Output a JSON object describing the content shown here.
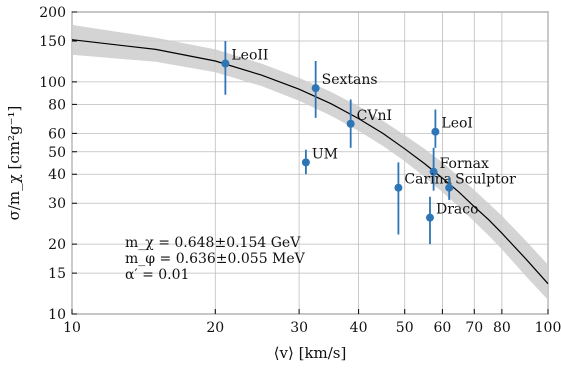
{
  "chart_data": {
    "type": "scatter",
    "x_scale": "log",
    "y_scale": "log",
    "xlim": [
      10,
      100
    ],
    "ylim": [
      10,
      200
    ],
    "x_ticks": [
      10,
      20,
      30,
      40,
      50,
      60,
      70,
      80,
      100
    ],
    "x_tick_labels": [
      "10",
      "20",
      "30",
      "40",
      "50",
      "60",
      "70",
      "80",
      "100"
    ],
    "y_ticks": [
      10,
      15,
      20,
      30,
      40,
      50,
      60,
      80,
      100,
      150,
      200
    ],
    "y_tick_labels": [
      "10",
      "15",
      "20",
      "30",
      "40",
      "50",
      "60",
      "80",
      "100",
      "150",
      "200"
    ],
    "xlabel": "⟨v⟩ [km/s]",
    "ylabel": "σ/m_χ [cm²g⁻¹]",
    "grid": true,
    "point_color": "#2e75b6",
    "band_color": "#cccccc",
    "curve_color": "#000000",
    "points": [
      {
        "label": "LeoII",
        "x": 21.0,
        "y": 120,
        "y_low": 88,
        "y_high": 150
      },
      {
        "label": "Sextans",
        "x": 32.5,
        "y": 94,
        "y_low": 70,
        "y_high": 123
      },
      {
        "label": "CVnI",
        "x": 38.5,
        "y": 66,
        "y_low": 52,
        "y_high": 84
      },
      {
        "label": "UM",
        "x": 31.0,
        "y": 45,
        "y_low": 40,
        "y_high": 51
      },
      {
        "label": "LeoI",
        "x": 58.0,
        "y": 61,
        "y_low": 52,
        "y_high": 76
      },
      {
        "label": "Fornax",
        "x": 57.5,
        "y": 41,
        "y_low": 34,
        "y_high": 52
      },
      {
        "label": "Carina",
        "x": 48.5,
        "y": 35,
        "y_low": 22,
        "y_high": 45
      },
      {
        "label": "Sculptor",
        "x": 62.0,
        "y": 35,
        "y_low": 31,
        "y_high": 39
      },
      {
        "label": "Draco",
        "x": 56.5,
        "y": 26,
        "y_low": 20,
        "y_high": 32
      }
    ],
    "fit_curve": {
      "x": [
        10,
        15,
        20,
        25,
        30,
        35,
        40,
        45,
        50,
        55,
        60,
        65,
        70,
        75,
        80,
        90,
        100
      ],
      "y": [
        152,
        138,
        123,
        107,
        93,
        80.5,
        69.5,
        60,
        51.5,
        44.5,
        38.5,
        33.5,
        29,
        25.5,
        22.3,
        17.2,
        13.5
      ],
      "band_upper": [
        176,
        155,
        138,
        120,
        104,
        90.5,
        78.5,
        68,
        59,
        51.5,
        45,
        39,
        34.2,
        30,
        26.5,
        20.6,
        16.3
      ],
      "band_lower": [
        131,
        122,
        110,
        96,
        83,
        71.5,
        61.5,
        53,
        45.5,
        39,
        33.5,
        29,
        25,
        21.8,
        19,
        14.5,
        11.5
      ]
    },
    "annotations": [
      "m_χ = 0.648±0.154 GeV",
      "m_φ = 0.636±0.055 MeV",
      "α′ = 0.01"
    ]
  }
}
